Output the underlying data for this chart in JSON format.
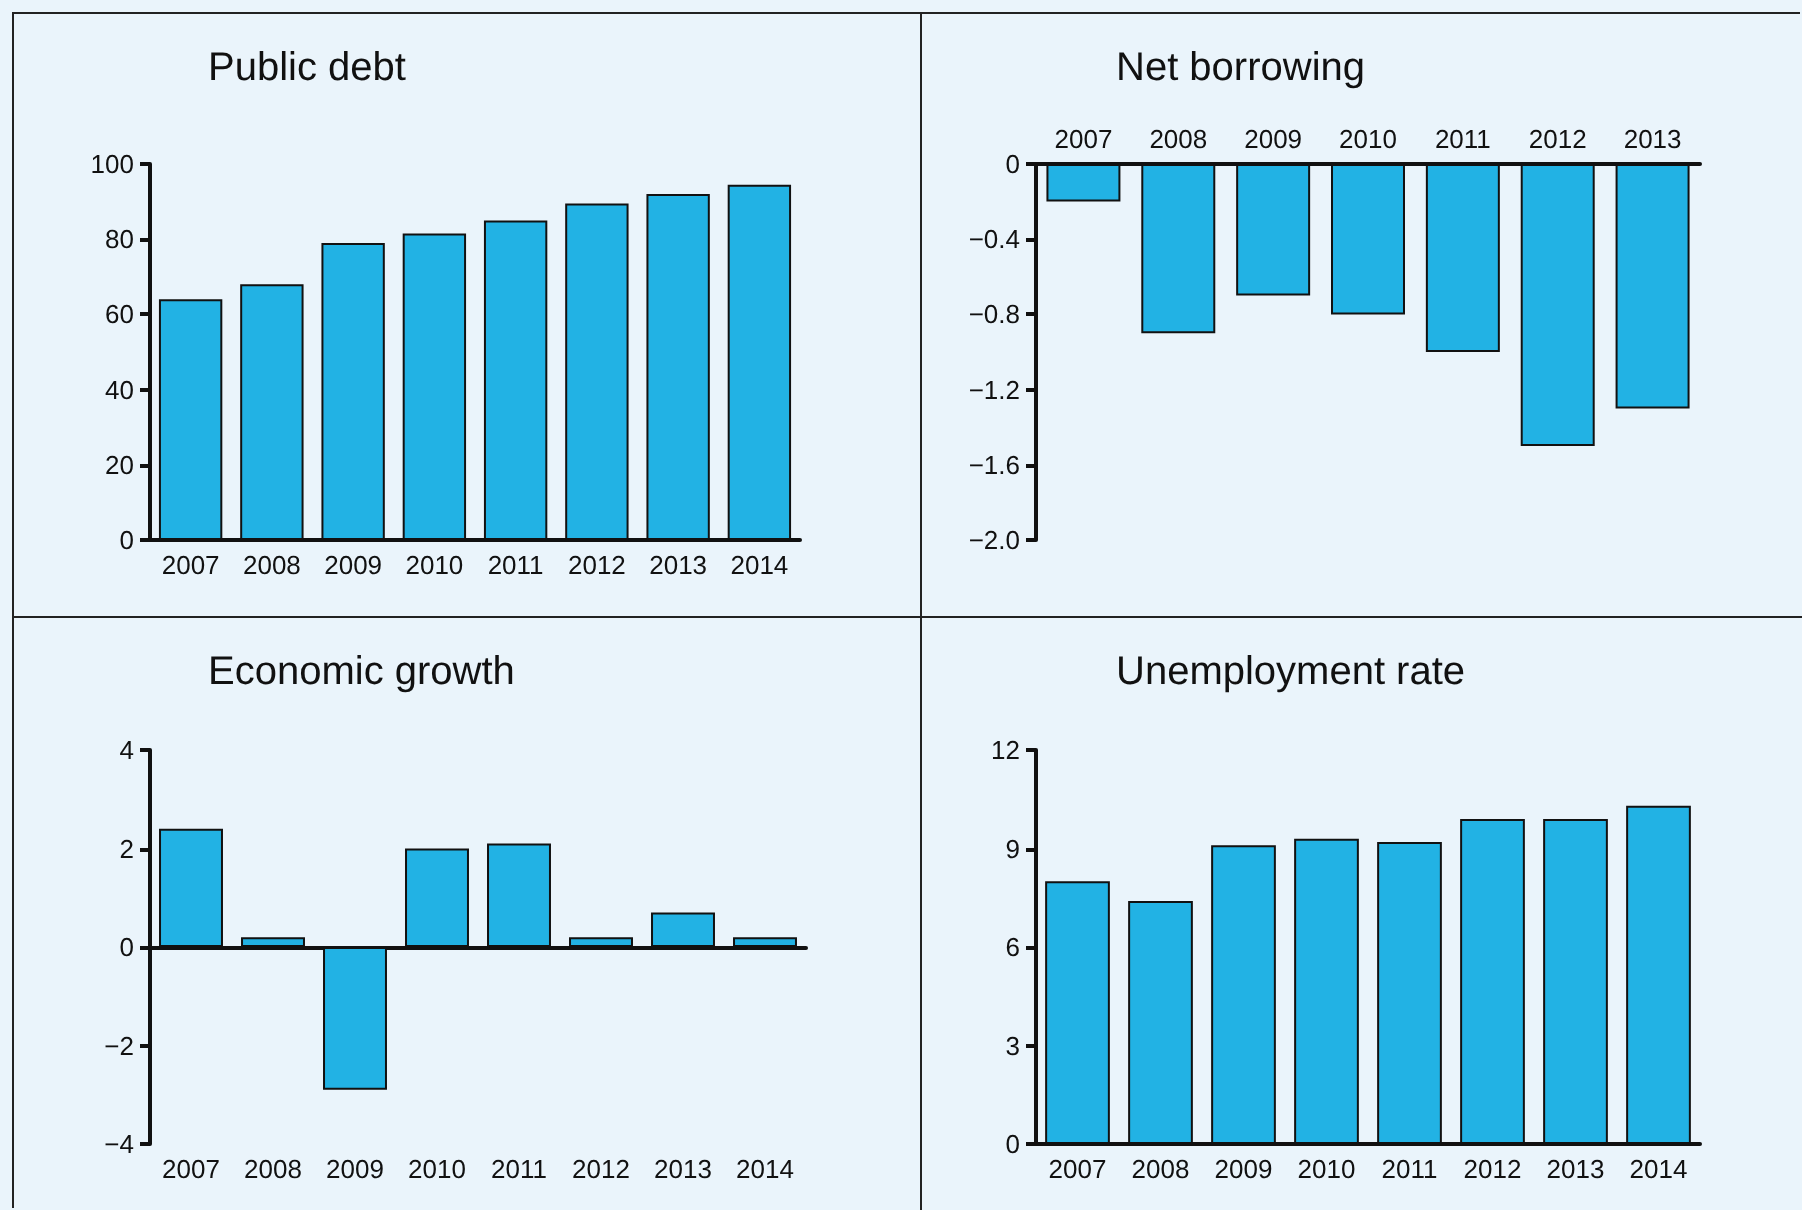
{
  "chart_data": [
    {
      "type": "bar",
      "title": "Public debt",
      "categories": [
        "2007",
        "2008",
        "2009",
        "2010",
        "2011",
        "2012",
        "2013",
        "2014"
      ],
      "values": [
        64,
        68,
        79,
        81.5,
        85,
        89.5,
        92,
        94.5
      ],
      "color": "#22b2e4",
      "ylim": [
        0,
        100
      ],
      "yticks": [
        0,
        20,
        40,
        60,
        80,
        100
      ]
    },
    {
      "type": "bar",
      "title": "Net borrowing",
      "categories": [
        "2007",
        "2008",
        "2009",
        "2010",
        "2011",
        "2012",
        "2013"
      ],
      "values": [
        -0.2,
        -0.9,
        -0.7,
        -0.8,
        -1.0,
        -1.5,
        -1.3
      ],
      "color": "#22b2e4",
      "ylim": [
        -2.0,
        0
      ],
      "yticks": [
        0,
        {
          "value": -0.4,
          "label": "−0.4"
        },
        {
          "value": -0.8,
          "label": "−0.8"
        },
        {
          "value": -1.2,
          "label": "−1.2"
        },
        {
          "value": -1.6,
          "label": "−1.6"
        },
        {
          "value": -2.0,
          "label": "−2.0"
        }
      ]
    },
    {
      "type": "bar",
      "title": "Economic growth",
      "categories": [
        "2007",
        "2008",
        "2009",
        "2010",
        "2011",
        "2012",
        "2013",
        "2014"
      ],
      "values": [
        2.4,
        0.2,
        -2.9,
        2.0,
        2.1,
        0.2,
        0.7,
        0.2
      ],
      "color": "#22b2e4",
      "ylim": [
        -4,
        4
      ],
      "yticks": [
        {
          "value": -4,
          "label": "−4"
        },
        {
          "value": -2,
          "label": "−2"
        },
        0,
        2,
        4
      ]
    },
    {
      "type": "bar",
      "title": "Unemployment rate",
      "categories": [
        "2007",
        "2008",
        "2009",
        "2010",
        "2011",
        "2012",
        "2013",
        "2014"
      ],
      "values": [
        8.0,
        7.4,
        9.1,
        9.3,
        9.2,
        9.9,
        9.9,
        10.3
      ],
      "color": "#22b2e4",
      "ylim": [
        0,
        12
      ],
      "yticks": [
        0,
        3,
        6,
        9,
        12
      ]
    }
  ]
}
